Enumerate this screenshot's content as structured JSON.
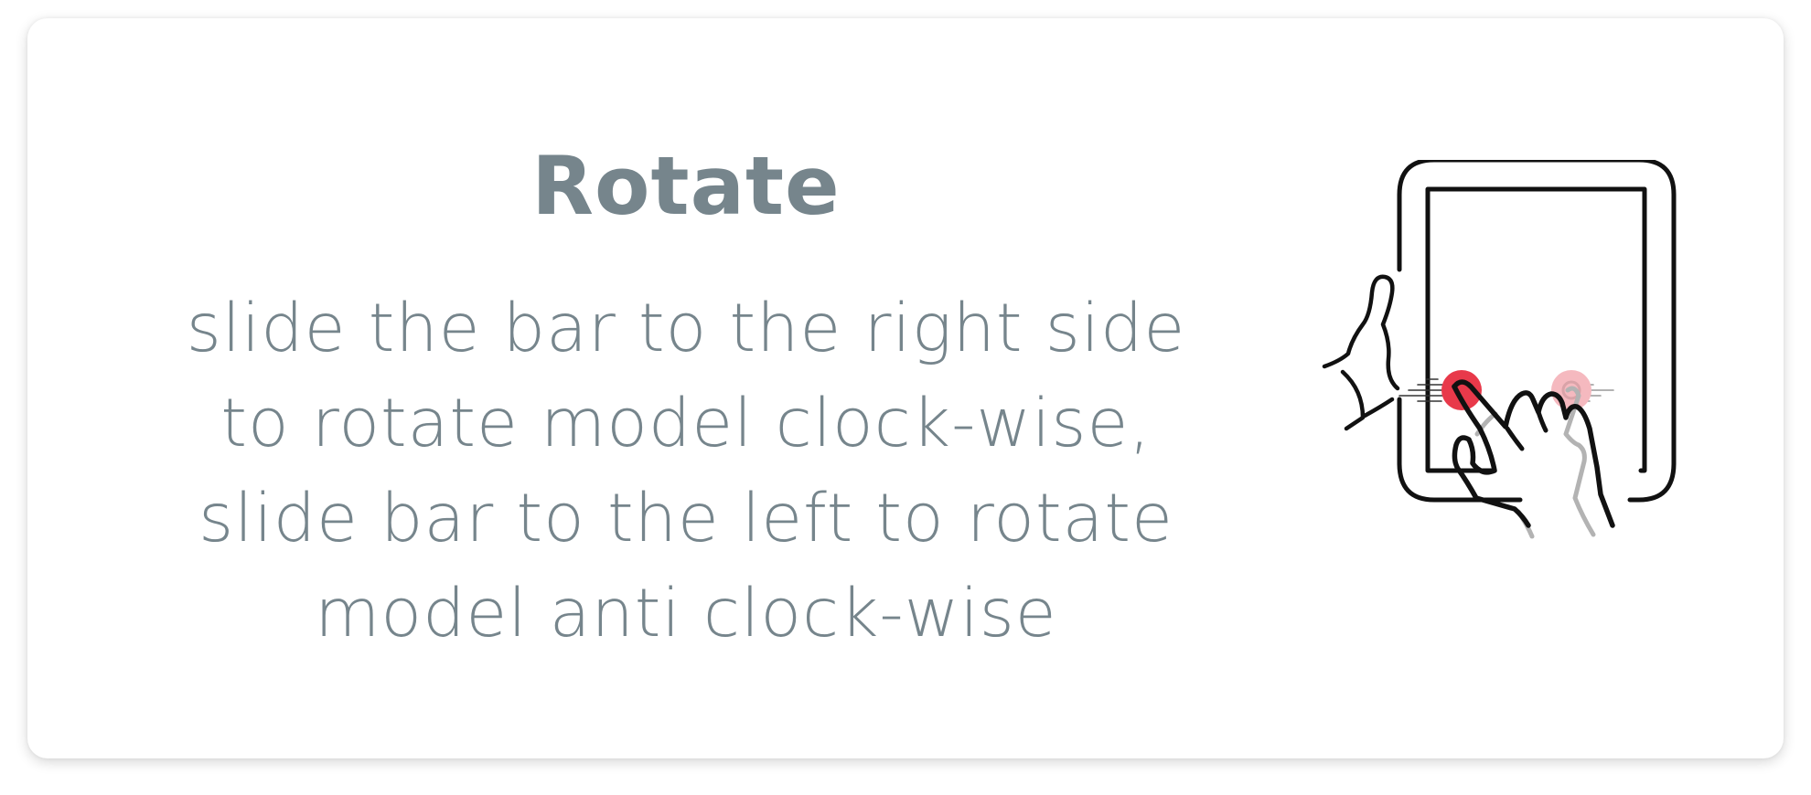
{
  "card": {
    "title": "Rotate",
    "description_lines": [
      "slide the bar to the right side",
      "to rotate model clock-wise,",
      "slide bar to the left to rotate",
      "model anti clock-wise"
    ]
  },
  "illustration": {
    "icon": "tablet-two-finger-swipe-icon",
    "colors": {
      "outline": "#111111",
      "touch_active": "#e8394a",
      "touch_ghost": "#f5b9bf",
      "ghost_hand": "#b3b3b3",
      "text": "#76858c"
    }
  }
}
